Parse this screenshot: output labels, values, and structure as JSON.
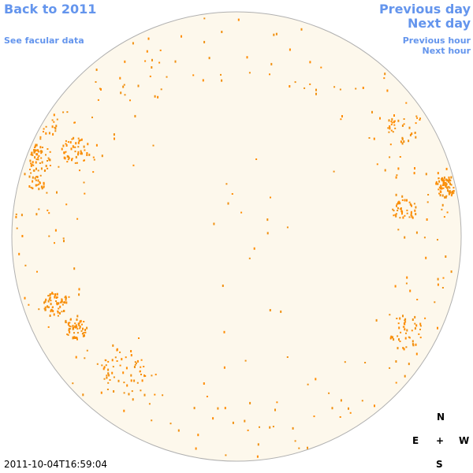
{
  "nav": {
    "back_year": "Back to 2011",
    "facular": "See facular data",
    "prev_day": "Previous day",
    "next_day": "Next day",
    "prev_hour": "Previous hour",
    "next_hour": "Next hour"
  },
  "timestamp": "2011-10-04T16:59:04",
  "compass": {
    "north": "N",
    "east": "E",
    "center": "+",
    "west": "W",
    "south": "S"
  }
}
